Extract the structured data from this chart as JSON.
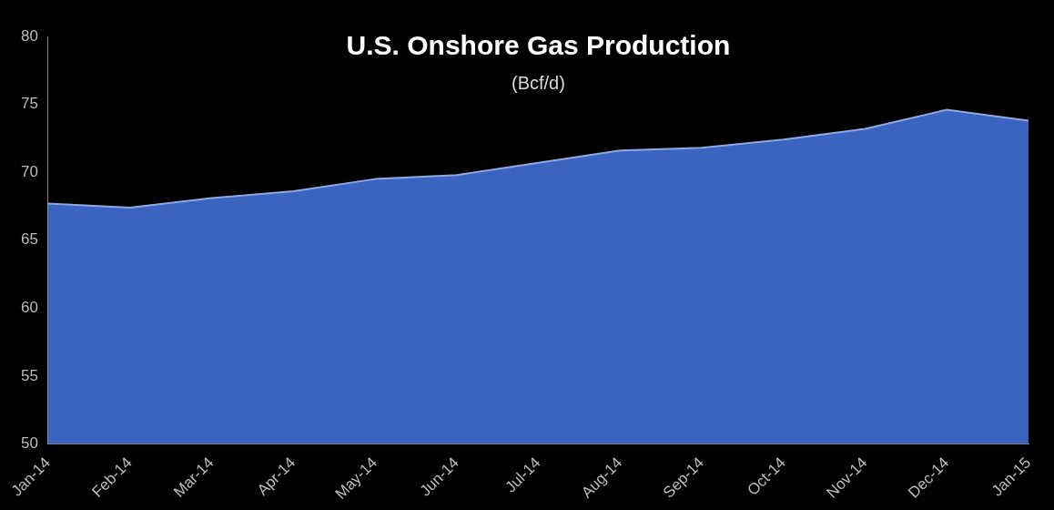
{
  "chart_data": {
    "type": "area",
    "title": "U.S. Onshore Gas Production",
    "subtitle": "(Bcf/d)",
    "categories": [
      "Jan-14",
      "Feb-14",
      "Mar-14",
      "Apr-14",
      "May-14",
      "Jun-14",
      "Jul-14",
      "Aug-14",
      "Sep-14",
      "Oct-14",
      "Nov-14",
      "Dec-14",
      "Jan-15"
    ],
    "values": [
      67.7,
      67.4,
      68.1,
      68.6,
      69.5,
      69.8,
      70.7,
      71.6,
      71.8,
      72.4,
      73.2,
      74.6,
      73.8
    ],
    "color": "#3a64c0",
    "ylim": [
      50,
      80
    ],
    "yticks": [
      50,
      55,
      60,
      65,
      70,
      75,
      80
    ]
  }
}
